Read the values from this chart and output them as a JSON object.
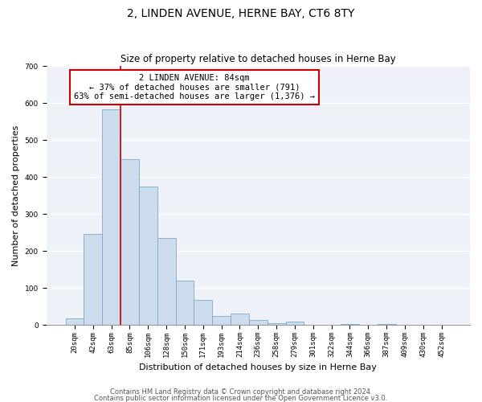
{
  "title": "2, LINDEN AVENUE, HERNE BAY, CT6 8TY",
  "subtitle": "Size of property relative to detached houses in Herne Bay",
  "xlabel": "Distribution of detached houses by size in Herne Bay",
  "ylabel": "Number of detached properties",
  "bin_labels": [
    "20sqm",
    "42sqm",
    "63sqm",
    "85sqm",
    "106sqm",
    "128sqm",
    "150sqm",
    "171sqm",
    "193sqm",
    "214sqm",
    "236sqm",
    "258sqm",
    "279sqm",
    "301sqm",
    "322sqm",
    "344sqm",
    "366sqm",
    "387sqm",
    "409sqm",
    "430sqm",
    "452sqm"
  ],
  "bar_values": [
    18,
    247,
    582,
    449,
    374,
    236,
    121,
    67,
    24,
    30,
    13,
    6,
    10,
    0,
    0,
    3,
    0,
    2,
    0,
    0,
    1
  ],
  "bar_color": "#ccdcec",
  "bar_edge_color": "#7aaac8",
  "annotation_text": "2 LINDEN AVENUE: 84sqm\n← 37% of detached houses are smaller (791)\n63% of semi-detached houses are larger (1,376) →",
  "annotation_box_color": "#ffffff",
  "annotation_box_edge": "#cc0000",
  "property_line_color": "#cc0000",
  "ylim": [
    0,
    700
  ],
  "yticks": [
    0,
    100,
    200,
    300,
    400,
    500,
    600,
    700
  ],
  "footer1": "Contains HM Land Registry data © Crown copyright and database right 2024.",
  "footer2": "Contains public sector information licensed under the Open Government Licence v3.0.",
  "background_color": "#ffffff",
  "plot_bg_color": "#eef2f8",
  "grid_color": "#ffffff",
  "title_fontsize": 10,
  "subtitle_fontsize": 8.5,
  "axis_label_fontsize": 8,
  "tick_fontsize": 6.5,
  "annotation_fontsize": 7.5,
  "footer_fontsize": 6
}
